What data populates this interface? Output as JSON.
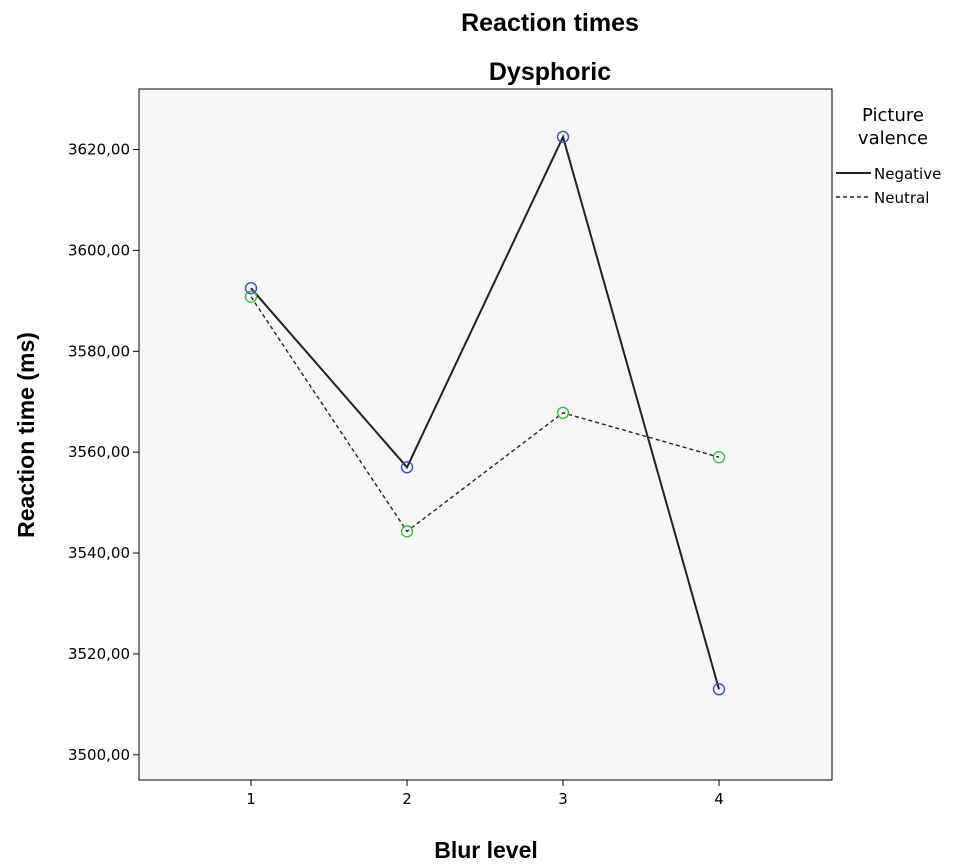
{
  "chart_data": {
    "type": "line",
    "title": "Reaction times",
    "subtitle": "Dysphoric",
    "xlabel": "Blur level",
    "ylabel": "Reaction time (ms)",
    "categories": [
      "1",
      "2",
      "3",
      "4"
    ],
    "ylim": [
      3495,
      3632
    ],
    "y_ticks": [
      3500,
      3520,
      3540,
      3560,
      3580,
      3600,
      3620
    ],
    "y_tick_labels": [
      "3500,00",
      "3520,00",
      "3540,00",
      "3560,00",
      "3580,00",
      "3600,00",
      "3620,00"
    ],
    "grid": false,
    "legend": {
      "title": "Picture valence",
      "title_lines": [
        "Picture",
        "valence"
      ],
      "placement": "right"
    },
    "series": [
      {
        "name": "Negative",
        "values": [
          3592.5,
          3557,
          3622.5,
          3513
        ],
        "line_style": "solid",
        "line_color": "#222222",
        "marker_color": "#3a4fc8"
      },
      {
        "name": "Neutral",
        "values": [
          3590.8,
          3544.3,
          3567.8,
          3559
        ],
        "line_style": "dashed",
        "line_color": "#222222",
        "marker_color": "#3cbf3c"
      }
    ],
    "plot_background": "#f7f7f7"
  }
}
